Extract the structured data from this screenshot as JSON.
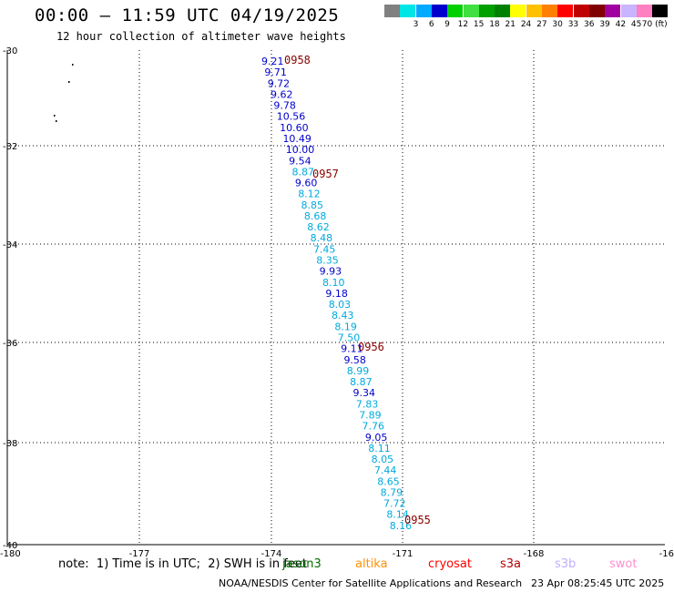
{
  "header": {
    "title": "00:00 – 11:59 UTC 04/19/2025",
    "subtitle": "12 hour collection of altimeter wave heights"
  },
  "legend": {
    "unit": "70 (ft)",
    "bins": [
      {
        "label": "",
        "color": "#808080"
      },
      {
        "label": "3",
        "color": "#00e5e5"
      },
      {
        "label": "6",
        "color": "#00aaff"
      },
      {
        "label": "9",
        "color": "#0000cc"
      },
      {
        "label": "12",
        "color": "#00d000"
      },
      {
        "label": "15",
        "color": "#40e040"
      },
      {
        "label": "18",
        "color": "#00a000"
      },
      {
        "label": "21",
        "color": "#008000"
      },
      {
        "label": "24",
        "color": "#ffff00"
      },
      {
        "label": "27",
        "color": "#ffc000"
      },
      {
        "label": "30",
        "color": "#ff8000"
      },
      {
        "label": "33",
        "color": "#ff0000"
      },
      {
        "label": "36",
        "color": "#c00000"
      },
      {
        "label": "39",
        "color": "#800000"
      },
      {
        "label": "42",
        "color": "#a000a0"
      },
      {
        "label": "45",
        "color": "#c8b4ff"
      },
      {
        "label": "",
        "color": "#ff80c0"
      },
      {
        "label": "",
        "color": "#000000"
      }
    ]
  },
  "map": {
    "lon_ticks": [
      "-180",
      "-177",
      "-174",
      "-171",
      "-168",
      "-16"
    ],
    "lat_ticks": [
      "-30",
      "-32",
      "-34",
      "-36",
      "-38",
      "-40"
    ],
    "grid": "dotted",
    "colors": {
      "cyan_text": "#00aadd",
      "blue_text": "#0000cc",
      "time_label": "#8b0000"
    },
    "time_labels": [
      {
        "text": "0958",
        "lat": -30.2
      },
      {
        "text": "0957",
        "lat": -32.5
      },
      {
        "text": "0956",
        "lat": -36.0
      },
      {
        "text": "0955",
        "lat": -39.5
      }
    ],
    "observations": [
      {
        "v": "9.21",
        "c": "blue"
      },
      {
        "v": "9.71",
        "c": "blue"
      },
      {
        "v": "9.72",
        "c": "blue"
      },
      {
        "v": "9.62",
        "c": "blue"
      },
      {
        "v": "9.78",
        "c": "blue"
      },
      {
        "v": "10.56",
        "c": "blue"
      },
      {
        "v": "10.60",
        "c": "blue"
      },
      {
        "v": "10.49",
        "c": "blue"
      },
      {
        "v": "10.00",
        "c": "blue"
      },
      {
        "v": "9.54",
        "c": "blue"
      },
      {
        "v": "8.87",
        "c": "cyan"
      },
      {
        "v": "9.60",
        "c": "blue"
      },
      {
        "v": "8.12",
        "c": "cyan"
      },
      {
        "v": "8.85",
        "c": "cyan"
      },
      {
        "v": "8.68",
        "c": "cyan"
      },
      {
        "v": "8.62",
        "c": "cyan"
      },
      {
        "v": "8.48",
        "c": "cyan"
      },
      {
        "v": "7.45",
        "c": "cyan"
      },
      {
        "v": "8.35",
        "c": "cyan"
      },
      {
        "v": "9.93",
        "c": "blue"
      },
      {
        "v": "8.10",
        "c": "cyan"
      },
      {
        "v": "9.18",
        "c": "blue"
      },
      {
        "v": "8.03",
        "c": "cyan"
      },
      {
        "v": "8.43",
        "c": "cyan"
      },
      {
        "v": "8.19",
        "c": "cyan"
      },
      {
        "v": "7.50",
        "c": "cyan"
      },
      {
        "v": "9.11",
        "c": "blue"
      },
      {
        "v": "9.58",
        "c": "blue"
      },
      {
        "v": "8.99",
        "c": "cyan"
      },
      {
        "v": "8.87",
        "c": "cyan"
      },
      {
        "v": "9.34",
        "c": "blue"
      },
      {
        "v": "7.83",
        "c": "cyan"
      },
      {
        "v": "7.89",
        "c": "cyan"
      },
      {
        "v": "7.76",
        "c": "cyan"
      },
      {
        "v": "9.05",
        "c": "blue"
      },
      {
        "v": "8.11",
        "c": "cyan"
      },
      {
        "v": "8.05",
        "c": "cyan"
      },
      {
        "v": "7.44",
        "c": "cyan"
      },
      {
        "v": "8.65",
        "c": "cyan"
      },
      {
        "v": "8.79",
        "c": "cyan"
      },
      {
        "v": "7.72",
        "c": "cyan"
      },
      {
        "v": "8.14",
        "c": "cyan"
      },
      {
        "v": "8.16",
        "c": "cyan"
      }
    ]
  },
  "note": "note:  1) Time is in UTC;  2) SWH is in feet",
  "satellites": [
    {
      "name": "jason3",
      "color": "#007000"
    },
    {
      "name": "altika",
      "color": "#ff9000"
    },
    {
      "name": "cryosat",
      "color": "#ff0000"
    },
    {
      "name": "s3a",
      "color": "#b00000"
    },
    {
      "name": "s3b",
      "color": "#c0b0ff"
    },
    {
      "name": "swot",
      "color": "#ff90d0"
    }
  ],
  "footer": {
    "center": "NOAA/NESDIS Center for Satellite Applications and Research",
    "timestamp": "23 Apr 08:25:45 UTC 2025"
  }
}
